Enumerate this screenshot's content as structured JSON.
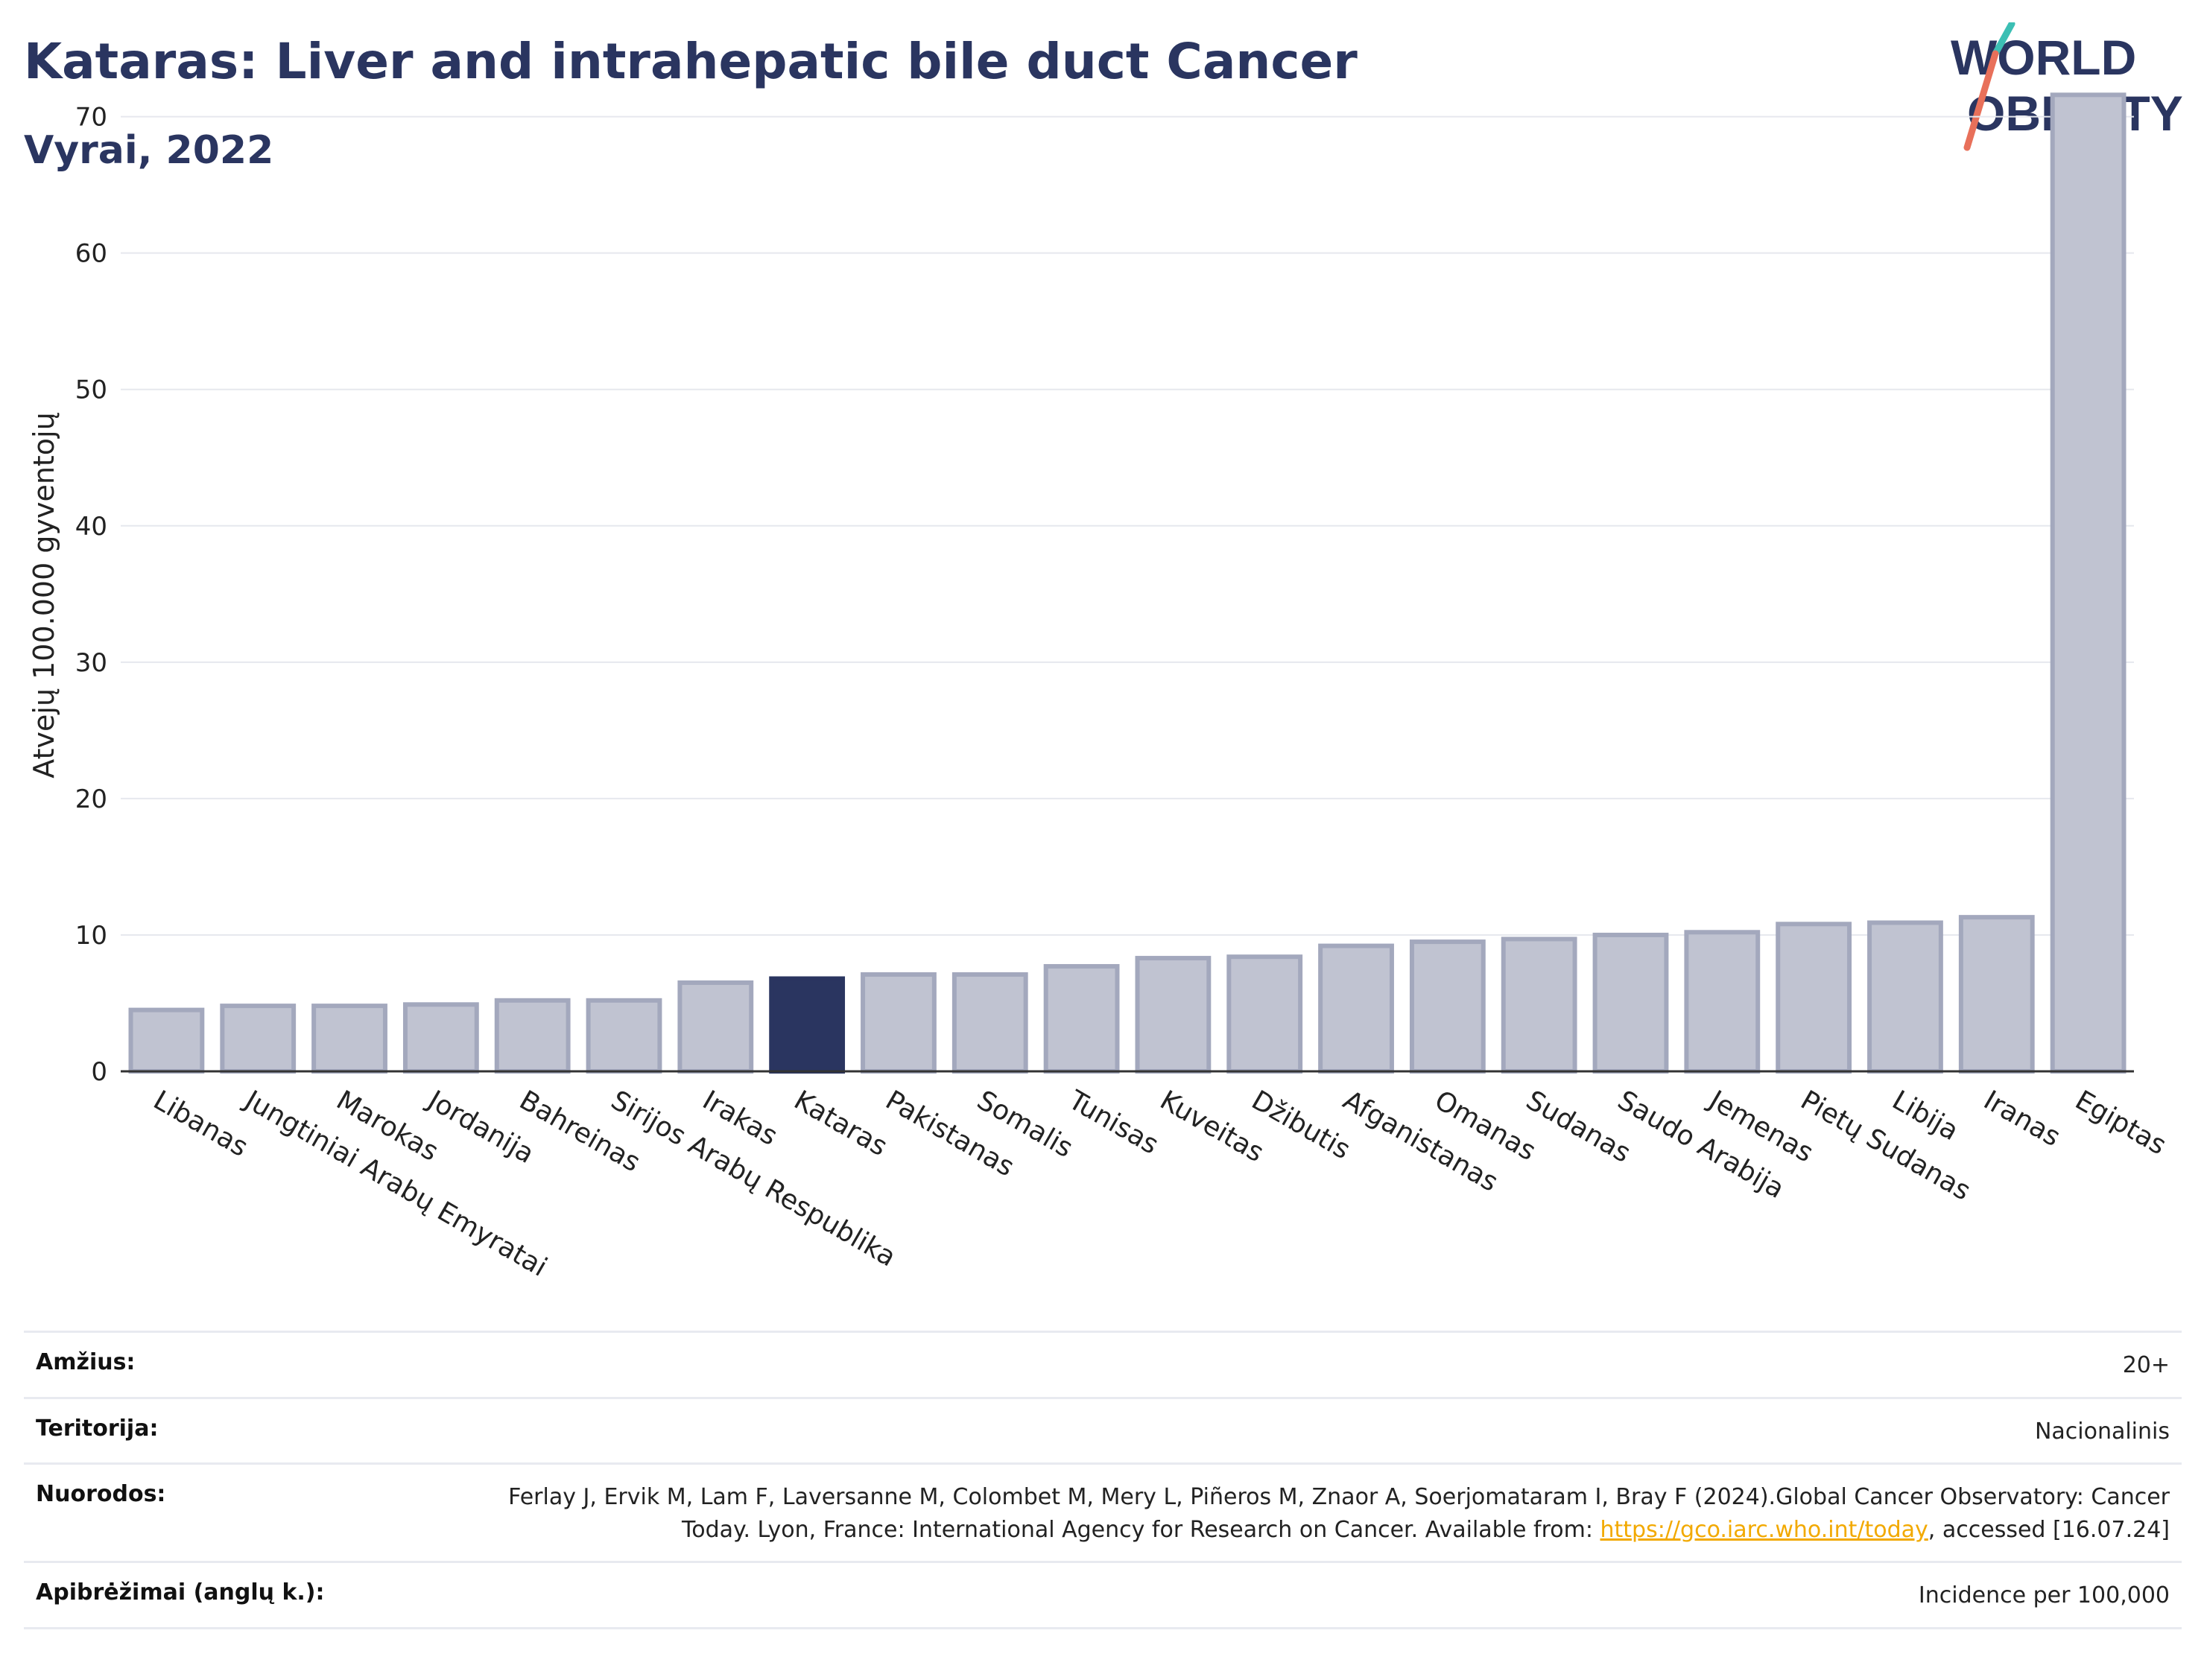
{
  "title": "Kataras: Liver and intrahepatic bile duct Cancer",
  "subtitle": "Vyrai, 2022",
  "logo": {
    "line1": "WORLD",
    "line2": "OBESITY"
  },
  "chart_data": {
    "type": "bar",
    "ylabel": "Atvejų 100.000 gyventojų",
    "ylim": [
      0,
      72
    ],
    "yticks": [
      0,
      10,
      20,
      30,
      40,
      50,
      60,
      70
    ],
    "grid": true,
    "highlight": "Kataras",
    "colors": {
      "bar": "#c0c3d1",
      "bar_edge": "#a3a8bd",
      "highlight": "#2a3560"
    },
    "categories": [
      "Libanas",
      "Jungtiniai Arabų Emyratai",
      "Marokas",
      "Jordanija",
      "Bahreinas",
      "Sirijos Arabų Respublika",
      "Irakas",
      "Kataras",
      "Pakistanas",
      "Somalis",
      "Tunisas",
      "Kuveitas",
      "Džibutis",
      "Afganistanas",
      "Omanas",
      "Sudanas",
      "Saudo Arabija",
      "Jemenas",
      "Pietų Sudanas",
      "Libija",
      "Iranas",
      "Egiptas"
    ],
    "values": [
      4.5,
      4.8,
      4.8,
      4.9,
      5.2,
      5.2,
      6.5,
      6.8,
      7.1,
      7.1,
      7.7,
      8.3,
      8.4,
      9.2,
      9.5,
      9.7,
      10.0,
      10.2,
      10.8,
      10.9,
      11.3,
      71.6
    ]
  },
  "info": {
    "age_label": "Amžius:",
    "age_value": "20+",
    "territory_label": "Teritorija:",
    "territory_value": "Nacionalinis",
    "refs_label": "Nuorodos:",
    "refs_text_1": "Ferlay J, Ervik M, Lam F, Laversanne M, Colombet M, Mery L, Piñeros M, Znaor A, Soerjomataram I, Bray F (2024).Global Cancer Observatory: Cancer Today. Lyon, France: International Agency for Research on Cancer. Available from: ",
    "refs_link": "https://gco.iarc.who.int/today",
    "refs_text_2": ", accessed [16.07.24]",
    "defs_label": "Apibrėžimai (anglų k.):",
    "defs_value": "Incidence per 100,000"
  }
}
